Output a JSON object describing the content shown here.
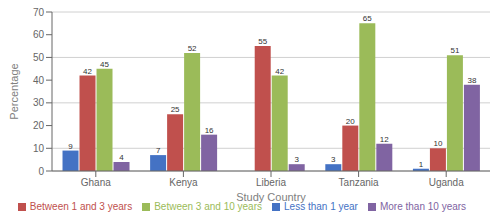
{
  "chart_data": {
    "type": "bar",
    "categories": [
      "Ghana",
      "Kenya",
      "Liberia",
      "Tanzania",
      "Uganda"
    ],
    "series": [
      {
        "name": "Less than 1 year",
        "color": "#4472C4",
        "values": [
          9,
          7,
          0,
          3,
          1
        ]
      },
      {
        "name": "Between 1 and 3 years",
        "color": "#C0504D",
        "values": [
          42,
          25,
          55,
          20,
          10
        ]
      },
      {
        "name": "Between 3 and 10 years",
        "color": "#9BBB59",
        "values": [
          45,
          52,
          42,
          65,
          51
        ]
      },
      {
        "name": "More than 10 years",
        "color": "#8064A2",
        "values": [
          4,
          16,
          3,
          12,
          38
        ]
      }
    ],
    "xlabel": "Study Country",
    "ylabel": "Percentage",
    "ylim": [
      0,
      70
    ],
    "yticks": [
      0,
      10,
      20,
      30,
      40,
      50,
      60,
      70
    ],
    "grid": true,
    "legend": "bottom",
    "data_labels": true
  }
}
